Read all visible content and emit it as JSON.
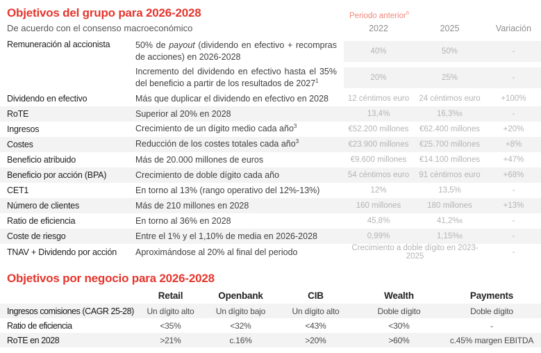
{
  "colors": {
    "accent_red": "#e5352c",
    "light_red": "#f0887d",
    "row_stripe": "#f3f3f3",
    "muted_value_gray": "#b4b4b4"
  },
  "group": {
    "title": "Objetivos del grupo para 2026-2028",
    "subtitle": "De acuerdo con el consenso macroeconómico",
    "period_label": "Periodo anterior",
    "period_label_sup": "5",
    "col_2022": "2022",
    "col_2025": "2025",
    "col_variation": "Variación",
    "rows": [
      {
        "label": "Remuneración al accionista",
        "desc_pre": "50% de ",
        "desc_italic": "payout",
        "desc_post": " (dividendo en efectivo + recompras de acciones) en 2026-2028",
        "v2022": "40%",
        "v2025": "50%",
        "variation": "-"
      },
      {
        "label": "",
        "desc_pre": "Incremento del dividendo en efectivo hasta el 35% del beneficio a partir de los resultados de 2027",
        "desc_sup": "1",
        "v2022": "20%",
        "v2025": "25%",
        "variation": "-"
      },
      {
        "label": "Dividendo en efectivo",
        "desc_pre": "Más que duplicar el dividendo en efectivo en 2028",
        "v2022": "12 céntimos euro",
        "v2025": "24 céntimos euro",
        "variation": "+100%"
      },
      {
        "label": "RoTE",
        "desc_pre": "Superior al 20% en 2028",
        "v2022": "13,4%",
        "v2025": "16,3%",
        "v2025_sup": "6",
        "variation": "-"
      },
      {
        "label": "Ingresos",
        "desc_pre": "Crecimiento de un dígito medio cada año",
        "desc_sup": "3",
        "v2022": "€52.200 millones",
        "v2025": "€62.400 millones",
        "variation": "+20%"
      },
      {
        "label": "Costes",
        "desc_pre": "Reducción de los costes totales cada año",
        "desc_sup": "3",
        "v2022": "€23.900 millones",
        "v2025": "€25.700 millones",
        "variation": "+8%"
      },
      {
        "label": "Beneficio atribuido",
        "desc_pre": "Más de 20.000 millones de euros",
        "v2022": "€9.600 millones",
        "v2025": "€14.100 millones",
        "variation": "+47%"
      },
      {
        "label": "Beneficio por acción (BPA)",
        "desc_pre": "Crecimiento de doble dígito cada año",
        "v2022": "54 céntimos euro",
        "v2025": "91 céntimos euro",
        "variation": "+68%"
      },
      {
        "label": "CET1",
        "desc_pre": "En torno al 13% (rango operativo del 12%-13%)",
        "v2022": "12%",
        "v2025": "13,5%",
        "variation": "-"
      },
      {
        "label": "Número de clientes",
        "desc_pre": "Más de 210 millones en 2028",
        "v2022": "160 millones",
        "v2025": "180 millones",
        "variation": "+13%"
      },
      {
        "label": "Ratio de eficiencia",
        "desc_pre": "En torno al 36% en 2028",
        "v2022": "45,8%",
        "v2025": "41,2%",
        "v2025_sup": "6",
        "variation": "-"
      },
      {
        "label": "Coste de riesgo",
        "desc_pre": "Entre el 1% y el 1,10% de media en 2026-2028",
        "v2022": "0,99%",
        "v2025": "1,15%",
        "v2025_sup": "6",
        "variation": "-"
      },
      {
        "label": "TNAV + Dividendo por acción",
        "desc_pre": "Aproximándose al 20% al final del periodo",
        "v_span": "Crecimiento a doble dígito en 2023-2025",
        "variation": "-"
      }
    ]
  },
  "business": {
    "title": "Objetivos por negocio para 2026-2028",
    "columns": [
      "Retail",
      "Openbank",
      "CIB",
      "Wealth",
      "Payments"
    ],
    "rows": [
      {
        "label": "Ingresos comisiones (CAGR 25-28)",
        "values": [
          "Un dígito alto",
          "Un dígito bajo",
          "Un dígito alto",
          "Doble dígito",
          "Doble dígito"
        ]
      },
      {
        "label": "Ratio de eficiencia",
        "values": [
          "<35%",
          "<32%",
          "<43%",
          "<30%",
          "-"
        ]
      },
      {
        "label": "RoTE en 2028",
        "values": [
          ">21%",
          "c.16%",
          ">20%",
          ">60%",
          "c.45% margen EBITDA"
        ]
      }
    ]
  }
}
